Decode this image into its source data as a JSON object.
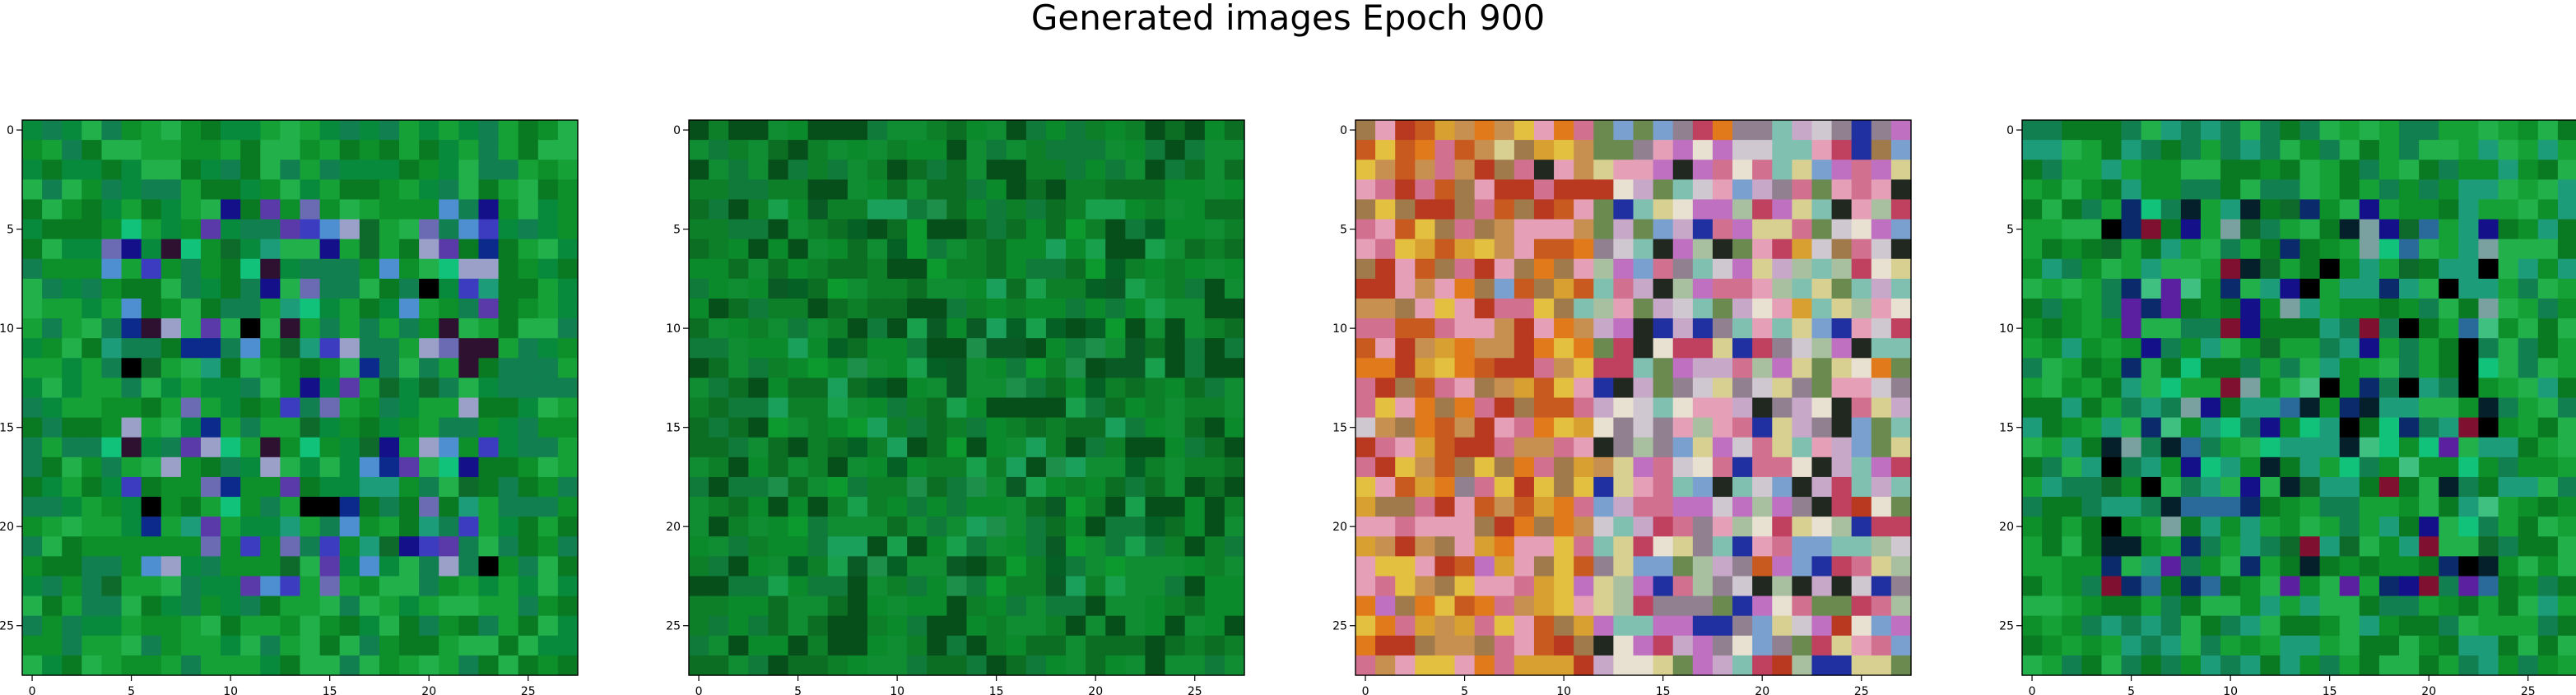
{
  "figure": {
    "title": "Generated images Epoch 900"
  },
  "chart_data": [
    {
      "type": "heatmap",
      "panel": 1,
      "xlim": [
        0,
        27
      ],
      "ylim": [
        27,
        0
      ],
      "xticks": [
        "0",
        "5",
        "10",
        "15",
        "20",
        "25"
      ],
      "yticks": [
        "0",
        "5",
        "10",
        "15",
        "20",
        "25"
      ],
      "grid": false,
      "palette": [
        "#0a7a22",
        "#0d8f2a",
        "#15a136",
        "#078a3c",
        "#22b04a",
        "#117f4f",
        "#1d9c7a",
        "#0b2a8c",
        "#13108a",
        "#5a3aa8",
        "#3c3cc0",
        "#000000",
        "#2e1030",
        "#4d8fd0",
        "#11c27a",
        "#6b6bb4",
        "#0e6a2a",
        "#9aa0c8"
      ]
    },
    {
      "type": "heatmap",
      "panel": 2,
      "xlim": [
        0,
        27
      ],
      "ylim": [
        27,
        0
      ],
      "xticks": [
        "0",
        "5",
        "10",
        "15",
        "20",
        "25"
      ],
      "yticks": [
        "0",
        "5",
        "10",
        "15",
        "20",
        "25"
      ],
      "grid": false,
      "palette": [
        "#0b6e22",
        "#0d7f28",
        "#0a8a2a",
        "#108c32",
        "#064e1a",
        "#0f7a3a",
        "#18a04c",
        "#0a5a26",
        "#1e8f4a",
        "#0c9a2e",
        "#046024",
        "#1aa05a"
      ]
    },
    {
      "type": "heatmap",
      "panel": 3,
      "xlim": [
        0,
        27
      ],
      "ylim": [
        27,
        0
      ],
      "xticks": [
        "0",
        "5",
        "10",
        "15",
        "20",
        "25"
      ],
      "yticks": [
        "0",
        "5",
        "10",
        "15",
        "20",
        "25"
      ],
      "grid": false,
      "palette": [
        "#e07a1a",
        "#c85a20",
        "#d8a030",
        "#b83820",
        "#e4c040",
        "#c89050",
        "#a07a4a",
        "#d27090",
        "#e5a0b8",
        "#c8a8c8",
        "#a8c0a0",
        "#80c0b0",
        "#d0c8d0",
        "#7aa0d0",
        "#c070c0",
        "#e8e0d0",
        "#908090",
        "#d8d090",
        "#6a8a50",
        "#202820",
        "#2030a0",
        "#c04060"
      ]
    },
    {
      "type": "heatmap",
      "panel": 4,
      "xlim": [
        0,
        27
      ],
      "ylim": [
        27,
        0
      ],
      "xticks": [
        "0",
        "5",
        "10",
        "15",
        "20",
        "25"
      ],
      "yticks": [
        "0",
        "5",
        "10",
        "15",
        "20",
        "25"
      ],
      "grid": false,
      "palette": [
        "#0a7a22",
        "#0d8f2a",
        "#15a136",
        "#22b04a",
        "#117f4f",
        "#1d9c7a",
        "#0b2a6c",
        "#13108a",
        "#000000",
        "#05202a",
        "#2a6a9a",
        "#11c27a",
        "#7aa0a0",
        "#801030",
        "#5a20a0",
        "#0e6a2a",
        "#40c080"
      ]
    }
  ]
}
